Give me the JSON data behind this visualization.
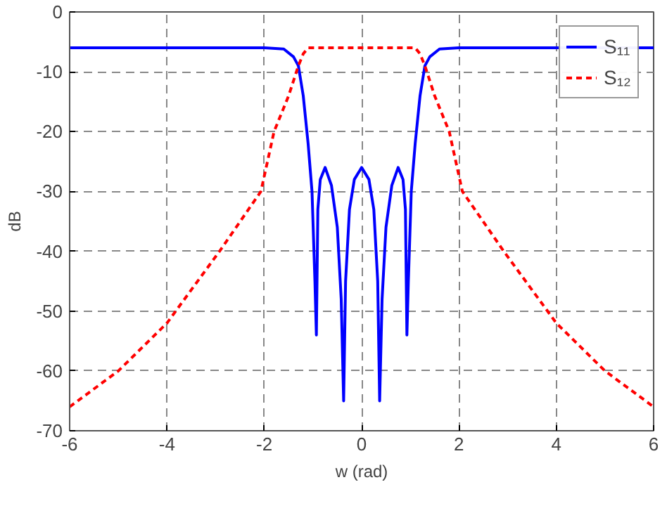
{
  "chart_data": {
    "type": "line",
    "xlabel": "w (rad)",
    "ylabel": "dB",
    "xlim": [
      -6,
      6
    ],
    "ylim": [
      -70,
      0
    ],
    "xticks": [
      -6,
      -4,
      -2,
      0,
      2,
      4,
      6
    ],
    "yticks": [
      -70,
      -60,
      -50,
      -40,
      -30,
      -20,
      -10,
      0
    ],
    "grid": true,
    "legend": "top right",
    "marker": "none",
    "series": [
      {
        "name": "S₁₁",
        "color": "#0000ff",
        "line_style": "solid",
        "x": [
          -6,
          -2,
          -1.6,
          -1.4,
          -1.3,
          -1.2,
          -1.1,
          -1.02,
          -0.96,
          -0.93,
          -0.9,
          -0.85,
          -0.75,
          -0.62,
          -0.5,
          -0.42,
          -0.37,
          -0.33,
          -0.25,
          -0.15,
          0,
          0.15,
          0.25,
          0.33,
          0.37,
          0.42,
          0.5,
          0.62,
          0.75,
          0.85,
          0.9,
          0.93,
          0.96,
          1.02,
          1.1,
          1.2,
          1.3,
          1.4,
          1.6,
          2,
          6
        ],
        "values": [
          -6,
          -6,
          -6.2,
          -7.5,
          -9,
          -14,
          -22,
          -30,
          -45,
          -54,
          -33,
          -28,
          -26,
          -29,
          -36,
          -48,
          -65,
          -45,
          -33,
          -28,
          -26,
          -28,
          -33,
          -45,
          -65,
          -48,
          -36,
          -29,
          -26,
          -28,
          -33,
          -54,
          -45,
          -30,
          -22,
          -14,
          -9,
          -7.5,
          -6.2,
          -6,
          -6
        ]
      },
      {
        "name": "S₁₂",
        "color": "#ff0000",
        "line_style": "dashed",
        "x": [
          -6,
          -5,
          -4,
          -2.92,
          -2.07,
          -1.8,
          -1.5,
          -1.3,
          -1.2,
          -1.1,
          1.1,
          1.2,
          1.3,
          1.5,
          1.8,
          2.07,
          2.92,
          4,
          5,
          6
        ],
        "values": [
          -66,
          -60,
          -52,
          -40,
          -30,
          -20,
          -14,
          -9,
          -7,
          -6,
          -6,
          -7,
          -9,
          -14,
          -20,
          -30,
          -40,
          -52,
          -60,
          -66
        ]
      }
    ]
  }
}
